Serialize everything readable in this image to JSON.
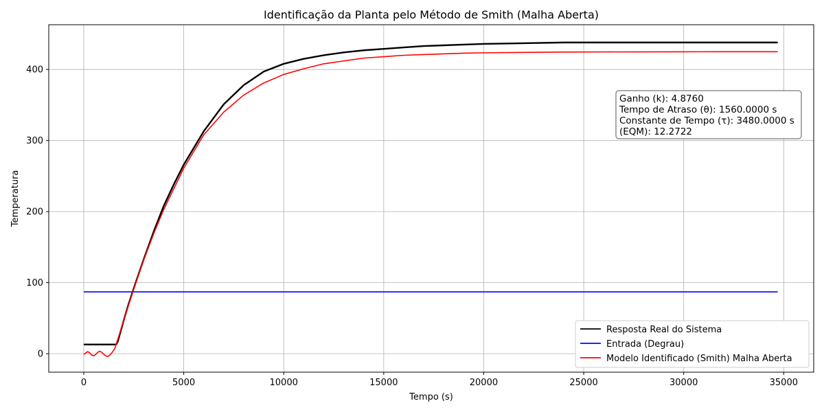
{
  "chart_data": {
    "type": "line",
    "title": "Identificação da Planta pelo Método de Smith (Malha Aberta)",
    "xlabel": "Tempo (s)",
    "ylabel": "Temperatura",
    "xlim": [
      -1750,
      36500
    ],
    "ylim": [
      -26,
      463
    ],
    "xticks": [
      0,
      5000,
      10000,
      15000,
      20000,
      25000,
      30000,
      35000
    ],
    "xtick_labels": [
      "0",
      "5000",
      "10000",
      "15000",
      "20000",
      "25000",
      "30000",
      "35000"
    ],
    "yticks": [
      0,
      100,
      200,
      300,
      400
    ],
    "ytick_labels": [
      "0",
      "100",
      "200",
      "300",
      "400"
    ],
    "grid": true,
    "legend_position": "lower-right",
    "series": [
      {
        "name": "Resposta Real do Sistema",
        "color": "#000000",
        "x": [
          0,
          1500,
          1620,
          1700,
          1800,
          2000,
          2200,
          2500,
          3000,
          3500,
          4000,
          4500,
          5000,
          6000,
          7000,
          8000,
          9000,
          10000,
          11000,
          12000,
          13000,
          14000,
          15000,
          16000,
          17000,
          18000,
          19000,
          20000,
          22000,
          24000,
          26000,
          28000,
          30000,
          32000,
          34700
        ],
        "y": [
          13,
          13,
          13,
          17,
          27,
          47,
          66,
          92,
          133,
          172,
          208,
          238,
          266,
          313,
          351,
          378,
          397,
          408,
          415,
          420,
          424,
          427,
          429,
          431,
          433,
          434,
          435,
          436,
          437,
          438,
          438,
          438,
          438,
          438,
          438
        ]
      },
      {
        "name": "Entrada (Degrau)",
        "color": "#0000ff",
        "x": [
          0,
          34700
        ],
        "y": [
          87,
          87
        ]
      },
      {
        "name": "Modelo Identificado (Smith) Malha Aberta",
        "color": "#ff0000",
        "x": [
          0,
          100,
          200,
          300,
          400,
          500,
          600,
          700,
          800,
          900,
          1000,
          1100,
          1200,
          1300,
          1400,
          1500,
          1560,
          1700,
          2000,
          2500,
          3000,
          3500,
          4000,
          4500,
          5000,
          6000,
          7000,
          8000,
          9000,
          10000,
          11000,
          12000,
          13000,
          14000,
          15000,
          16000,
          17000,
          18000,
          19000,
          20000,
          22000,
          24000,
          26000,
          28000,
          30000,
          32000,
          34700
        ],
        "y": [
          -1,
          1,
          3,
          1,
          -2,
          -3,
          -1,
          2,
          3.5,
          2,
          -1,
          -3,
          -4,
          -2,
          1,
          5,
          8,
          20,
          47,
          91,
          132,
          169,
          203,
          232,
          261,
          308,
          340,
          364,
          381,
          393,
          401,
          408,
          412,
          416,
          418,
          420,
          421,
          422,
          423,
          423.5,
          424,
          424.5,
          424.7,
          424.8,
          424.9,
          425,
          425
        ]
      }
    ],
    "annotation": {
      "lines": [
        "Ganho (k): 4.8760",
        "Tempo de Atraso (θ): 1560.0000 s",
        "Constante de Tempo (τ): 3480.0000 s",
        "(EQM): 12.2722"
      ]
    }
  }
}
